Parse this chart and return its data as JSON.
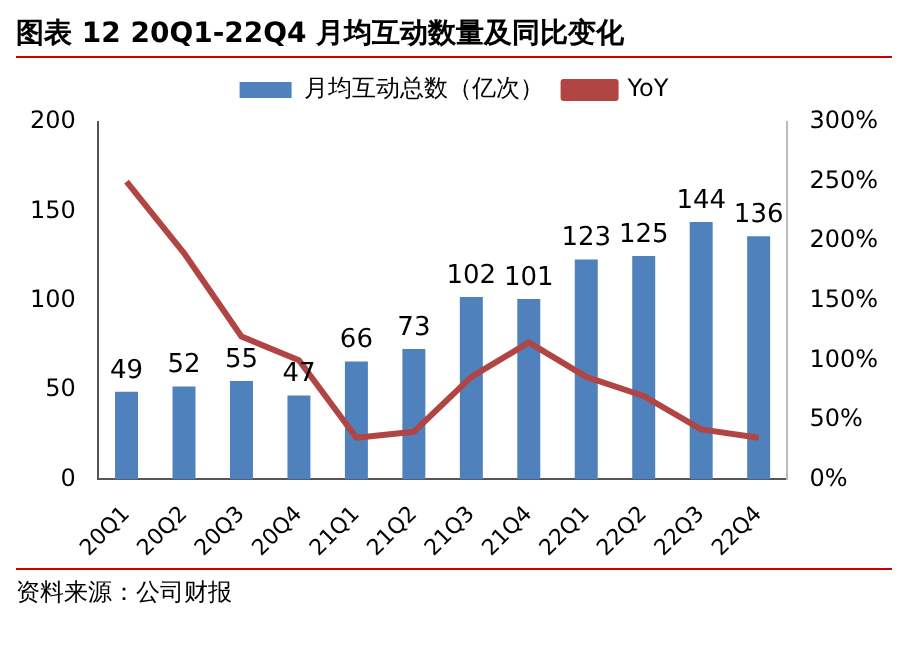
{
  "chart_data": {
    "type": "bar",
    "title": "图表 12 20Q1-22Q4 月均互动数量及同比变化",
    "categories": [
      "20Q1",
      "20Q2",
      "20Q3",
      "20Q4",
      "21Q1",
      "21Q2",
      "21Q3",
      "21Q4",
      "22Q1",
      "22Q2",
      "22Q3",
      "22Q4"
    ],
    "series": [
      {
        "name": "月均互动总数（亿次）",
        "color": "#4f81bd",
        "values": [
          49,
          52,
          55,
          47,
          66,
          73,
          102,
          101,
          123,
          125,
          144,
          136
        ],
        "value_labels": [
          "49",
          "52",
          "55",
          "47",
          "66",
          "73",
          "102",
          "101",
          "123",
          "125",
          "144",
          "136"
        ]
      },
      {
        "name": "YoY",
        "type": "line",
        "axis": "y2",
        "color": "#b04543",
        "values": [
          250,
          190,
          120,
          100,
          35,
          40,
          86,
          115,
          86,
          70,
          42,
          35
        ]
      }
    ],
    "ylim": [
      0,
      200
    ],
    "yticks": [
      0,
      50,
      100,
      150,
      200
    ],
    "y2lim": [
      0,
      300
    ],
    "y2ticks": [
      {
        "value": 0,
        "label": "0%"
      },
      {
        "value": 50,
        "label": "50%"
      },
      {
        "value": 100,
        "label": "100%"
      },
      {
        "value": 150,
        "label": "150%"
      },
      {
        "value": 200,
        "label": "200%"
      },
      {
        "value": 250,
        "label": "250%"
      },
      {
        "value": 300,
        "label": "300%"
      }
    ],
    "grid": false,
    "legend": "top",
    "marker": "none",
    "line_style": "solid",
    "annotations": [
      "资料来源：公司财报"
    ]
  }
}
